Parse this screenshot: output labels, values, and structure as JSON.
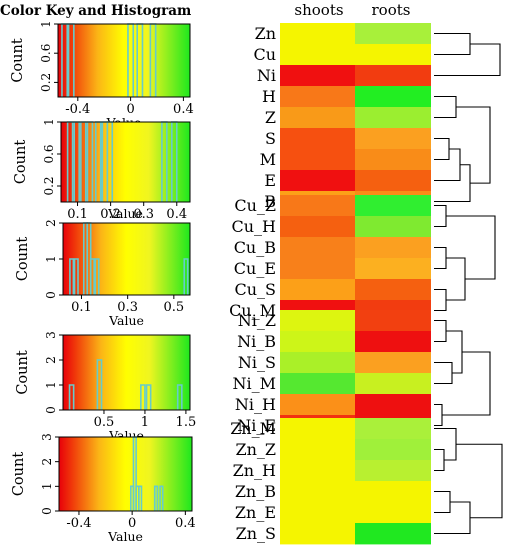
{
  "title": "Color Key and Histogram",
  "heatmap": {
    "columns": [
      "shoots",
      "roots"
    ],
    "groups": [
      {
        "rows": [
          {
            "label": "Zn",
            "colors": [
              "#f5f500",
              "#a8f03a"
            ]
          },
          {
            "label": "Cu",
            "colors": [
              "#f5f500",
              "#f5f500"
            ]
          },
          {
            "label": "Ni",
            "colors": [
              "#f01010",
              "#f23c10"
            ]
          }
        ]
      },
      {
        "rows": [
          {
            "label": "H",
            "colors": [
              "#f87818",
              "#22ee22"
            ]
          },
          {
            "label": "Z",
            "colors": [
              "#f99a18",
              "#9bee30"
            ]
          },
          {
            "label": "S",
            "colors": [
              "#f65010",
              "#fba020"
            ]
          },
          {
            "label": "M",
            "colors": [
              "#f65010",
              "#f98c18"
            ]
          },
          {
            "label": "E",
            "colors": [
              "#f01010",
              "#f56010"
            ]
          },
          {
            "label": "B",
            "colors": [
              "#fca018",
              "#f98c18"
            ]
          }
        ]
      },
      {
        "rows": [
          {
            "label": "Cu_Z",
            "colors": [
              "#f87818",
              "#30ee30"
            ]
          },
          {
            "label": "Cu_H",
            "colors": [
              "#f56010",
              "#7fea30"
            ]
          },
          {
            "label": "Cu_B",
            "colors": [
              "#f8801a",
              "#fba020"
            ]
          },
          {
            "label": "Cu_E",
            "colors": [
              "#f8801a",
              "#fcb020"
            ]
          },
          {
            "label": "Cu_S",
            "colors": [
              "#fca018",
              "#f56010"
            ]
          },
          {
            "label": "Cu_M",
            "colors": [
              "#f01010",
              "#f23c10"
            ]
          }
        ]
      },
      {
        "rows": [
          {
            "label": "Ni_Z",
            "colors": [
              "#ddf510",
              "#f24010"
            ]
          },
          {
            "label": "Ni_B",
            "colors": [
              "#cdf518",
              "#ee1010"
            ]
          },
          {
            "label": "Ni_S",
            "colors": [
              "#aaf028",
              "#fba020"
            ]
          },
          {
            "label": "Ni_M",
            "colors": [
              "#55e830",
              "#c8f020"
            ]
          },
          {
            "label": "Ni_H",
            "colors": [
              "#fb9018",
              "#ee1010"
            ]
          },
          {
            "label": "Ni_E",
            "colors": [
              "#f23010",
              "#ee1010"
            ]
          }
        ]
      },
      {
        "rows": [
          {
            "label": "Zn_M",
            "colors": [
              "#f5f500",
              "#aaf03a"
            ]
          },
          {
            "label": "Zn_Z",
            "colors": [
              "#f5f500",
              "#a0f03a"
            ]
          },
          {
            "label": "Zn_H",
            "colors": [
              "#f5f500",
              "#b8f030"
            ]
          },
          {
            "label": "Zn_B",
            "colors": [
              "#f5f500",
              "#f5f500"
            ]
          },
          {
            "label": "Zn_E",
            "colors": [
              "#f5f500",
              "#f5f500"
            ]
          },
          {
            "label": "Zn_S",
            "colors": [
              "#f5f500",
              "#20e820"
            ]
          }
        ]
      }
    ]
  },
  "chart_data": [
    {
      "type": "histogram",
      "title": "Color Key and Histogram",
      "xlabel": "Value",
      "ylabel": "Count",
      "xlim": [
        -0.55,
        0.45
      ],
      "ylim": [
        0,
        1
      ],
      "x_ticks": [
        "-0.4",
        "0",
        "0.4"
      ],
      "x_tick_values": [
        -0.4,
        0,
        0.4
      ],
      "y_ticks": [
        "0.2",
        "0.6",
        "1"
      ],
      "y_tick_values": [
        0.2,
        0.6,
        1
      ],
      "bars": [
        {
          "x0": -0.52,
          "x1": -0.48,
          "count": 1
        },
        {
          "x0": -0.47,
          "x1": -0.43,
          "count": 1
        },
        {
          "x0": -0.02,
          "x1": 0.02,
          "count": 1
        },
        {
          "x0": 0.05,
          "x1": 0.09,
          "count": 1
        },
        {
          "x0": 0.15,
          "x1": 0.19,
          "count": 1
        }
      ]
    },
    {
      "type": "histogram",
      "xlabel": "Value",
      "ylabel": "Count",
      "xlim": [
        0.05,
        0.44
      ],
      "ylim": [
        0,
        1
      ],
      "x_ticks": [
        "0.1",
        "0.2",
        "0.3",
        "0.4"
      ],
      "x_tick_values": [
        0.1,
        0.2,
        0.3,
        0.4
      ],
      "y_ticks": [
        "0.2",
        "0.6",
        "1"
      ],
      "y_tick_values": [
        0.2,
        0.6,
        1
      ],
      "bars": [
        {
          "x0": 0.07,
          "x1": 0.085,
          "count": 1
        },
        {
          "x0": 0.09,
          "x1": 0.105,
          "count": 1
        },
        {
          "x0": 0.11,
          "x1": 0.125,
          "count": 1
        },
        {
          "x0": 0.13,
          "x1": 0.145,
          "count": 1
        },
        {
          "x0": 0.155,
          "x1": 0.17,
          "count": 1
        },
        {
          "x0": 0.175,
          "x1": 0.19,
          "count": 1
        },
        {
          "x0": 0.19,
          "x1": 0.205,
          "count": 1
        },
        {
          "x0": 0.355,
          "x1": 0.37,
          "count": 1
        },
        {
          "x0": 0.385,
          "x1": 0.4,
          "count": 1
        }
      ]
    },
    {
      "type": "histogram",
      "xlabel": "Value",
      "ylabel": "Count",
      "xlim": [
        0.02,
        0.57
      ],
      "ylim": [
        0,
        2
      ],
      "x_ticks": [
        "0.1",
        "0.3",
        "0.5"
      ],
      "x_tick_values": [
        0.1,
        0.3,
        0.5
      ],
      "y_ticks": [
        "0",
        "1",
        "2"
      ],
      "y_tick_values": [
        0,
        1,
        2
      ],
      "bars": [
        {
          "x0": 0.05,
          "x1": 0.065,
          "count": 1
        },
        {
          "x0": 0.07,
          "x1": 0.085,
          "count": 1
        },
        {
          "x0": 0.11,
          "x1": 0.125,
          "count": 2
        },
        {
          "x0": 0.125,
          "x1": 0.14,
          "count": 2
        },
        {
          "x0": 0.14,
          "x1": 0.155,
          "count": 1
        },
        {
          "x0": 0.16,
          "x1": 0.175,
          "count": 1
        },
        {
          "x0": 0.545,
          "x1": 0.56,
          "count": 1
        }
      ]
    },
    {
      "type": "histogram",
      "xlabel": "Value",
      "ylabel": "Count",
      "xlim": [
        0.0,
        1.55
      ],
      "ylim": [
        0,
        3
      ],
      "x_ticks": [
        "0.5",
        "1",
        "1.5"
      ],
      "x_tick_values": [
        0.5,
        1,
        1.5
      ],
      "y_ticks": [
        "0",
        "1",
        "2",
        "3"
      ],
      "y_tick_values": [
        0,
        1,
        2,
        3
      ],
      "bars": [
        {
          "x0": 0.08,
          "x1": 0.13,
          "count": 1
        },
        {
          "x0": 0.42,
          "x1": 0.47,
          "count": 2
        },
        {
          "x0": 0.95,
          "x1": 1.0,
          "count": 1
        },
        {
          "x0": 1.02,
          "x1": 1.07,
          "count": 1
        },
        {
          "x0": 1.4,
          "x1": 1.45,
          "count": 1
        }
      ]
    },
    {
      "type": "histogram",
      "xlabel": "Value",
      "ylabel": "Count",
      "xlim": [
        -0.55,
        0.45
      ],
      "ylim": [
        0,
        3
      ],
      "x_ticks": [
        "-0.4",
        "0",
        "0.4"
      ],
      "x_tick_values": [
        -0.4,
        0,
        0.4
      ],
      "y_ticks": [
        "0",
        "1",
        "2",
        "3"
      ],
      "y_tick_values": [
        0,
        1,
        2,
        3
      ],
      "bars": [
        {
          "x0": -0.01,
          "x1": 0.01,
          "count": 1
        },
        {
          "x0": 0.01,
          "x1": 0.03,
          "count": 3
        },
        {
          "x0": 0.03,
          "x1": 0.05,
          "count": 1
        },
        {
          "x0": 0.05,
          "x1": 0.07,
          "count": 1
        },
        {
          "x0": 0.17,
          "x1": 0.19,
          "count": 1
        },
        {
          "x0": 0.21,
          "x1": 0.23,
          "count": 1
        }
      ]
    }
  ]
}
